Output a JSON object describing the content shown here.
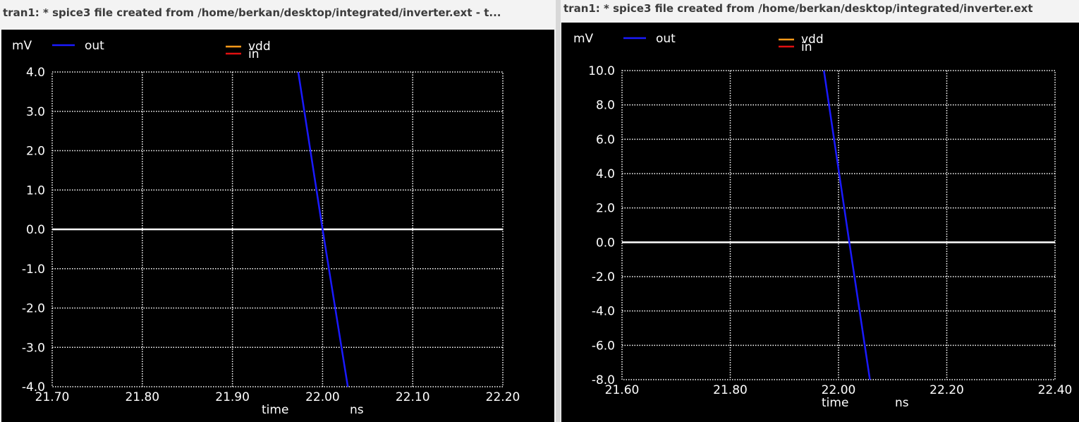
{
  "windows": [
    {
      "title": "tran1: * spice3 file created from /home/berkan/desktop/integrated/inverter.ext - t...",
      "chart_data": {
        "type": "line",
        "unit_y": "mV",
        "xlabel": "time",
        "x_unit": "ns",
        "xlim": [
          21.7,
          22.2
        ],
        "ylim": [
          -4.0,
          4.0
        ],
        "x_ticks": [
          "21.70",
          "21.80",
          "21.90",
          "22.00",
          "22.10",
          "22.20"
        ],
        "y_ticks": [
          "4.0",
          "3.0",
          "2.0",
          "1.0",
          "0.0",
          "-1.0",
          "-2.0",
          "-3.0",
          "-4.0"
        ],
        "grid": true,
        "legend": [
          {
            "name": "out",
            "color": "#1a1aff"
          },
          {
            "name": "vdd",
            "color": "#ff9a1a"
          },
          {
            "name": "in",
            "color": "#e01010"
          }
        ],
        "series": [
          {
            "name": "out",
            "color": "#1a1aff",
            "points": [
              [
                21.973,
                4.0
              ],
              [
                22.0,
                0.0
              ],
              [
                22.028,
                -4.0
              ]
            ]
          }
        ],
        "zero_line": {
          "color": "#ffffff",
          "value": 0.0
        }
      }
    },
    {
      "title": "tran1: * spice3 file created from /home/berkan/desktop/integrated/inverter.ext",
      "chart_data": {
        "type": "line",
        "unit_y": "mV",
        "xlabel": "time",
        "x_unit": "ns",
        "xlim": [
          21.6,
          22.4
        ],
        "ylim": [
          -8.0,
          10.0
        ],
        "x_ticks": [
          "21.60",
          "21.80",
          "22.00",
          "22.20",
          "22.40"
        ],
        "y_ticks": [
          "10.0",
          "8.0",
          "6.0",
          "4.0",
          "2.0",
          "0.0",
          "-2.0",
          "-4.0",
          "-6.0",
          "-8.0"
        ],
        "grid": true,
        "legend": [
          {
            "name": "out",
            "color": "#1a1aff"
          },
          {
            "name": "vdd",
            "color": "#ff9a1a"
          },
          {
            "name": "in",
            "color": "#e01010"
          }
        ],
        "series": [
          {
            "name": "out",
            "color": "#1a1aff",
            "points": [
              [
                21.973,
                10.0
              ],
              [
                22.02,
                0.0
              ],
              [
                22.058,
                -8.0
              ]
            ]
          }
        ],
        "zero_line": {
          "color": "#ffffff",
          "value": 0.0
        }
      }
    }
  ]
}
